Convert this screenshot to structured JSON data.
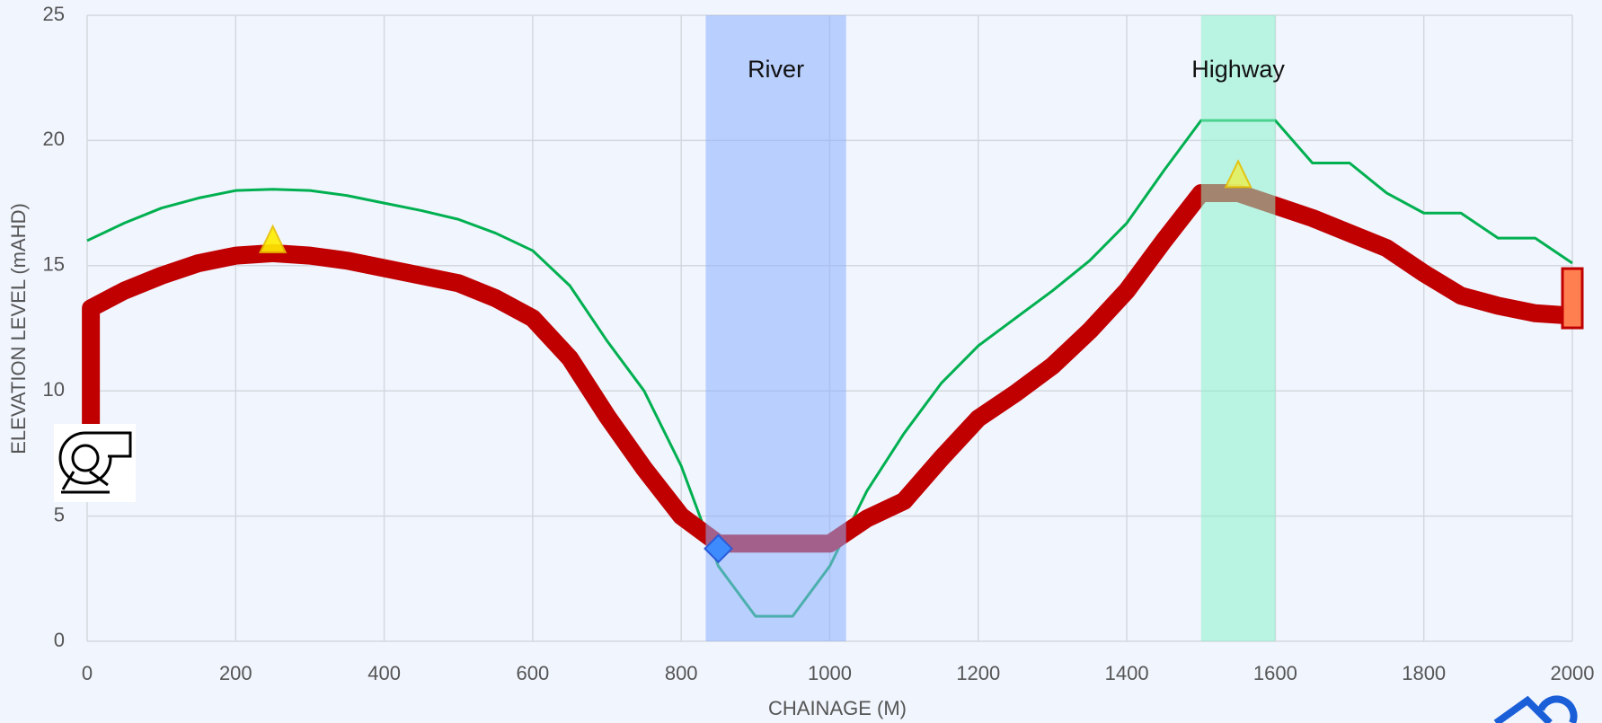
{
  "chart_data": {
    "type": "line",
    "xlabel": "CHAINAGE (M)",
    "ylabel": "ELEVATION LEVEL (mAHD)",
    "xlim": [
      0,
      2000
    ],
    "xticks": [
      0,
      200,
      400,
      600,
      800,
      1000,
      1200,
      1400,
      1600,
      1800,
      2000
    ],
    "ylim": [
      0,
      25
    ],
    "yticks": [
      0,
      5,
      10,
      15,
      20,
      25
    ],
    "grid": true,
    "series": [
      {
        "color": "#00b050",
        "width": 3,
        "x": [
          0,
          50,
          100,
          150,
          200,
          250,
          300,
          350,
          400,
          450,
          500,
          550,
          600,
          650,
          700,
          750,
          800,
          850,
          900,
          950,
          1000,
          1050,
          1100,
          1150,
          1200,
          1250,
          1300,
          1350,
          1400,
          1450,
          1500,
          1550,
          1600,
          1650,
          1700,
          1750,
          1800,
          1850,
          1900,
          1950,
          2000
        ],
        "values": [
          16,
          16.7,
          17.3,
          17.7,
          18,
          18.05,
          18,
          17.8,
          17.5,
          17.2,
          16.85,
          16.3,
          15.6,
          14.2,
          12,
          10,
          7,
          3,
          1,
          1,
          3,
          6,
          8.3,
          10.3,
          11.8,
          12.9,
          14,
          15.2,
          16.7,
          18.8,
          20.8,
          20.8,
          20.8,
          19.1,
          19.1,
          17.9,
          17.1,
          17.1,
          16.1,
          16.1,
          15.1
        ]
      },
      {
        "color": "#c00000",
        "width": 20,
        "x": [
          5,
          5,
          50,
          100,
          150,
          200,
          250,
          300,
          350,
          400,
          450,
          500,
          550,
          600,
          650,
          700,
          750,
          800,
          850,
          900,
          950,
          1000,
          1050,
          1100,
          1150,
          1200,
          1250,
          1300,
          1350,
          1400,
          1450,
          1500,
          1550,
          1600,
          1650,
          1700,
          1750,
          1800,
          1850,
          1900,
          1950,
          2000
        ],
        "values": [
          8.5,
          13.3,
          14,
          14.6,
          15.1,
          15.4,
          15.5,
          15.4,
          15.2,
          14.9,
          14.6,
          14.3,
          13.7,
          12.9,
          11.3,
          9,
          6.9,
          5,
          3.9,
          3.9,
          3.9,
          3.9,
          4.9,
          5.6,
          7.3,
          8.9,
          9.9,
          11,
          12.4,
          14,
          16,
          17.9,
          17.9,
          17.4,
          16.9,
          16.3,
          15.7,
          14.7,
          13.8,
          13.4,
          13.1,
          13
        ]
      }
    ],
    "bands": [
      {
        "label": "River",
        "x0": 833,
        "x1": 1022,
        "color": "#8aaefc"
      },
      {
        "label": "Highway",
        "x0": 1500,
        "x1": 1600,
        "color": "#8af0c8"
      }
    ],
    "markers": [
      {
        "shape": "triangle",
        "x": 250,
        "y": 16,
        "color": "#ffee00"
      },
      {
        "shape": "triangle",
        "x": 1550,
        "y": 18.6,
        "color": "#e6f060"
      },
      {
        "shape": "diamond",
        "x": 850,
        "y": 3.7,
        "color": "#3d8bfd"
      },
      {
        "shape": "rect",
        "x": 2000,
        "y": 13.7,
        "color": "#ff7f50"
      }
    ]
  }
}
